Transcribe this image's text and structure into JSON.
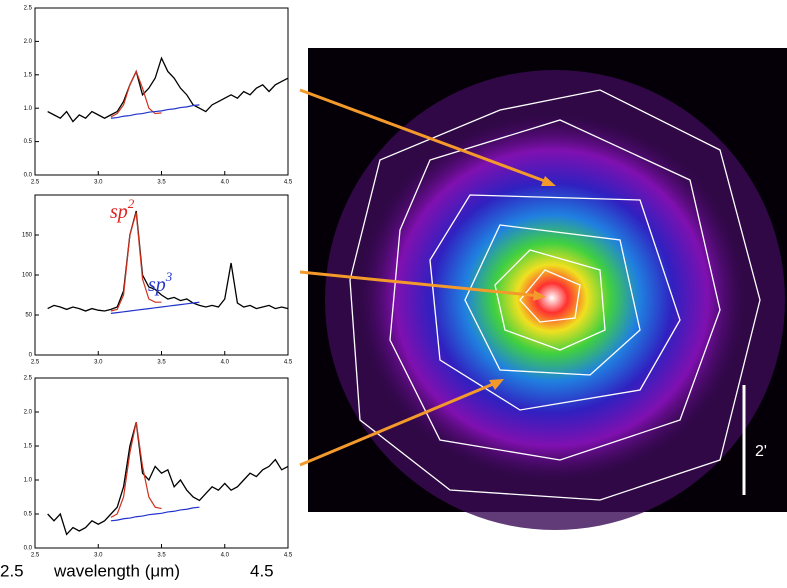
{
  "chart_data": [
    {
      "type": "line",
      "x": [
        2.6,
        2.65,
        2.7,
        2.75,
        2.8,
        2.85,
        2.9,
        2.95,
        3.0,
        3.05,
        3.1,
        3.15,
        3.2,
        3.25,
        3.3,
        3.35,
        3.4,
        3.45,
        3.5,
        3.55,
        3.6,
        3.65,
        3.7,
        3.75,
        3.8,
        3.85,
        3.9,
        3.95,
        4.0,
        4.05,
        4.1,
        4.15,
        4.2,
        4.25,
        4.3,
        4.35,
        4.4,
        4.45,
        4.5
      ],
      "xlim": [
        2.5,
        4.5
      ],
      "xticks": [
        {
          "value": 2.5,
          "label": "2.5"
        },
        {
          "value": 3,
          "label": "3.0"
        },
        {
          "value": 3.5,
          "label": "3.5"
        },
        {
          "value": 4,
          "label": "4.0"
        },
        {
          "value": 4.5,
          "label": "4.5"
        }
      ],
      "ylim": [
        0,
        2.5
      ],
      "yticks": [
        {
          "value": 0,
          "label": "0.0"
        },
        {
          "value": 0.5,
          "label": "0.5"
        },
        {
          "value": 1,
          "label": "1.0"
        },
        {
          "value": 1.5,
          "label": "1.5"
        },
        {
          "value": 2,
          "label": "2.0"
        },
        {
          "value": 2.5,
          "label": "2.5"
        }
      ],
      "series": [
        {
          "color": "#000000",
          "values": [
            0.95,
            0.9,
            0.85,
            0.95,
            0.8,
            0.9,
            0.85,
            0.95,
            0.9,
            0.85,
            0.9,
            0.95,
            1.1,
            1.35,
            1.55,
            1.2,
            1.3,
            1.45,
            1.75,
            1.55,
            1.45,
            1.3,
            1.2,
            1.05,
            1.0,
            0.95,
            1.05,
            1.1,
            1.15,
            1.2,
            1.15,
            1.25,
            1.2,
            1.3,
            1.35,
            1.25,
            1.35,
            1.4,
            1.45
          ]
        },
        {
          "color": "#d0301c",
          "values": [
            null,
            null,
            null,
            null,
            null,
            null,
            null,
            null,
            null,
            null,
            0.87,
            0.92,
            1.05,
            1.35,
            1.55,
            1.3,
            1.0,
            0.92,
            0.93,
            null,
            null,
            null,
            null,
            null,
            null,
            null,
            null,
            null,
            null,
            null,
            null,
            null,
            null,
            null,
            null,
            null,
            null,
            null,
            null
          ]
        },
        {
          "color": "#2233cc",
          "values": [
            null,
            null,
            null,
            null,
            null,
            null,
            null,
            null,
            null,
            null,
            0.85,
            0.86,
            0.88,
            0.89,
            0.91,
            0.92,
            0.94,
            0.95,
            0.96,
            0.98,
            0.99,
            1.01,
            1.02,
            1.04,
            1.05,
            null,
            null,
            null,
            null,
            null,
            null,
            null,
            null,
            null,
            null,
            null,
            null,
            null,
            null
          ]
        }
      ]
    },
    {
      "type": "line",
      "x": [
        2.6,
        2.65,
        2.7,
        2.75,
        2.8,
        2.85,
        2.9,
        2.95,
        3.0,
        3.05,
        3.1,
        3.15,
        3.2,
        3.25,
        3.3,
        3.35,
        3.4,
        3.45,
        3.5,
        3.55,
        3.6,
        3.65,
        3.7,
        3.75,
        3.8,
        3.85,
        3.9,
        3.95,
        4.0,
        4.05,
        4.1,
        4.15,
        4.2,
        4.25,
        4.3,
        4.35,
        4.4,
        4.45,
        4.5
      ],
      "xlim": [
        2.5,
        4.5
      ],
      "xticks": [
        {
          "value": 2.5,
          "label": "2.5"
        },
        {
          "value": 3,
          "label": "3.0"
        },
        {
          "value": 3.5,
          "label": "3.5"
        },
        {
          "value": 4,
          "label": "4.0"
        },
        {
          "value": 4.5,
          "label": "4.5"
        }
      ],
      "ylim": [
        0,
        200
      ],
      "yticks": [
        0,
        50,
        100,
        150
      ],
      "series": [
        {
          "color": "#000000",
          "values": [
            58,
            62,
            60,
            57,
            60,
            58,
            55,
            58,
            56,
            55,
            57,
            60,
            80,
            150,
            180,
            100,
            85,
            82,
            75,
            70,
            72,
            68,
            70,
            65,
            62,
            60,
            62,
            60,
            70,
            115,
            65,
            60,
            62,
            58,
            60,
            62,
            58,
            60,
            58
          ]
        },
        {
          "color": "#d0301c",
          "values": [
            null,
            null,
            null,
            null,
            null,
            null,
            null,
            null,
            null,
            null,
            55,
            57,
            75,
            150,
            178,
            95,
            70,
            66,
            66,
            null,
            null,
            null,
            null,
            null,
            null,
            null,
            null,
            null,
            null,
            null,
            null,
            null,
            null,
            null,
            null,
            null,
            null,
            null,
            null
          ]
        },
        {
          "color": "#2233cc",
          "values": [
            null,
            null,
            null,
            null,
            null,
            null,
            null,
            null,
            null,
            null,
            52,
            53,
            54,
            55,
            56,
            57,
            58,
            59,
            60,
            61,
            62,
            63,
            64,
            65,
            66,
            null,
            null,
            null,
            null,
            null,
            null,
            null,
            null,
            null,
            null,
            null,
            null,
            null,
            null
          ]
        }
      ],
      "annotations": [
        {
          "text": "sp",
          "sup": "2",
          "color": "#e0201c"
        },
        {
          "text": "sp",
          "sup": "3",
          "color": "#2233cc"
        }
      ]
    },
    {
      "type": "line",
      "x": [
        2.6,
        2.65,
        2.7,
        2.75,
        2.8,
        2.85,
        2.9,
        2.95,
        3.0,
        3.05,
        3.1,
        3.15,
        3.2,
        3.25,
        3.3,
        3.35,
        3.4,
        3.45,
        3.5,
        3.55,
        3.6,
        3.65,
        3.7,
        3.75,
        3.8,
        3.85,
        3.9,
        3.95,
        4.0,
        4.05,
        4.1,
        4.15,
        4.2,
        4.25,
        4.3,
        4.35,
        4.4,
        4.45,
        4.5
      ],
      "xlim": [
        2.5,
        4.5
      ],
      "xticks": [
        {
          "value": 2.5,
          "label": "2.5"
        },
        {
          "value": 3,
          "label": "3.0"
        },
        {
          "value": 3.5,
          "label": "3.5"
        },
        {
          "value": 4,
          "label": "4.0"
        },
        {
          "value": 4.5,
          "label": "4.5"
        }
      ],
      "ylim": [
        0,
        2.5
      ],
      "yticks": [
        {
          "value": 0,
          "label": "0.0"
        },
        {
          "value": 0.5,
          "label": "0.5"
        },
        {
          "value": 1,
          "label": "1.0"
        },
        {
          "value": 1.5,
          "label": "1.5"
        },
        {
          "value": 2,
          "label": "2.0"
        },
        {
          "value": 2.5,
          "label": "2.5"
        }
      ],
      "series": [
        {
          "color": "#000000",
          "values": [
            0.5,
            0.4,
            0.5,
            0.2,
            0.3,
            0.25,
            0.3,
            0.4,
            0.35,
            0.4,
            0.5,
            0.6,
            0.9,
            1.5,
            1.85,
            1.1,
            1.0,
            1.2,
            1.1,
            1.15,
            0.9,
            1.0,
            0.85,
            0.75,
            0.7,
            0.8,
            0.9,
            0.85,
            0.95,
            0.85,
            0.9,
            1.0,
            1.1,
            1.05,
            1.15,
            1.2,
            1.3,
            1.15,
            1.2
          ]
        },
        {
          "color": "#d0301c",
          "values": [
            null,
            null,
            null,
            null,
            null,
            null,
            null,
            null,
            null,
            null,
            0.45,
            0.5,
            0.75,
            1.4,
            1.85,
            1.2,
            0.75,
            0.6,
            0.58,
            null,
            null,
            null,
            null,
            null,
            null,
            null,
            null,
            null,
            null,
            null,
            null,
            null,
            null,
            null,
            null,
            null,
            null,
            null,
            null
          ]
        },
        {
          "color": "#2233cc",
          "values": [
            null,
            null,
            null,
            null,
            null,
            null,
            null,
            null,
            null,
            null,
            0.4,
            0.41,
            0.43,
            0.44,
            0.46,
            0.47,
            0.49,
            0.5,
            0.51,
            0.53,
            0.54,
            0.56,
            0.57,
            0.59,
            0.6,
            null,
            null,
            null,
            null,
            null,
            null,
            null,
            null,
            null,
            null,
            null,
            null,
            null,
            null
          ]
        }
      ]
    }
  ],
  "caption": {
    "left": "2.5",
    "label": "wavelength (μm)",
    "right": "4.5"
  },
  "image": {
    "scale_label": "2'"
  }
}
